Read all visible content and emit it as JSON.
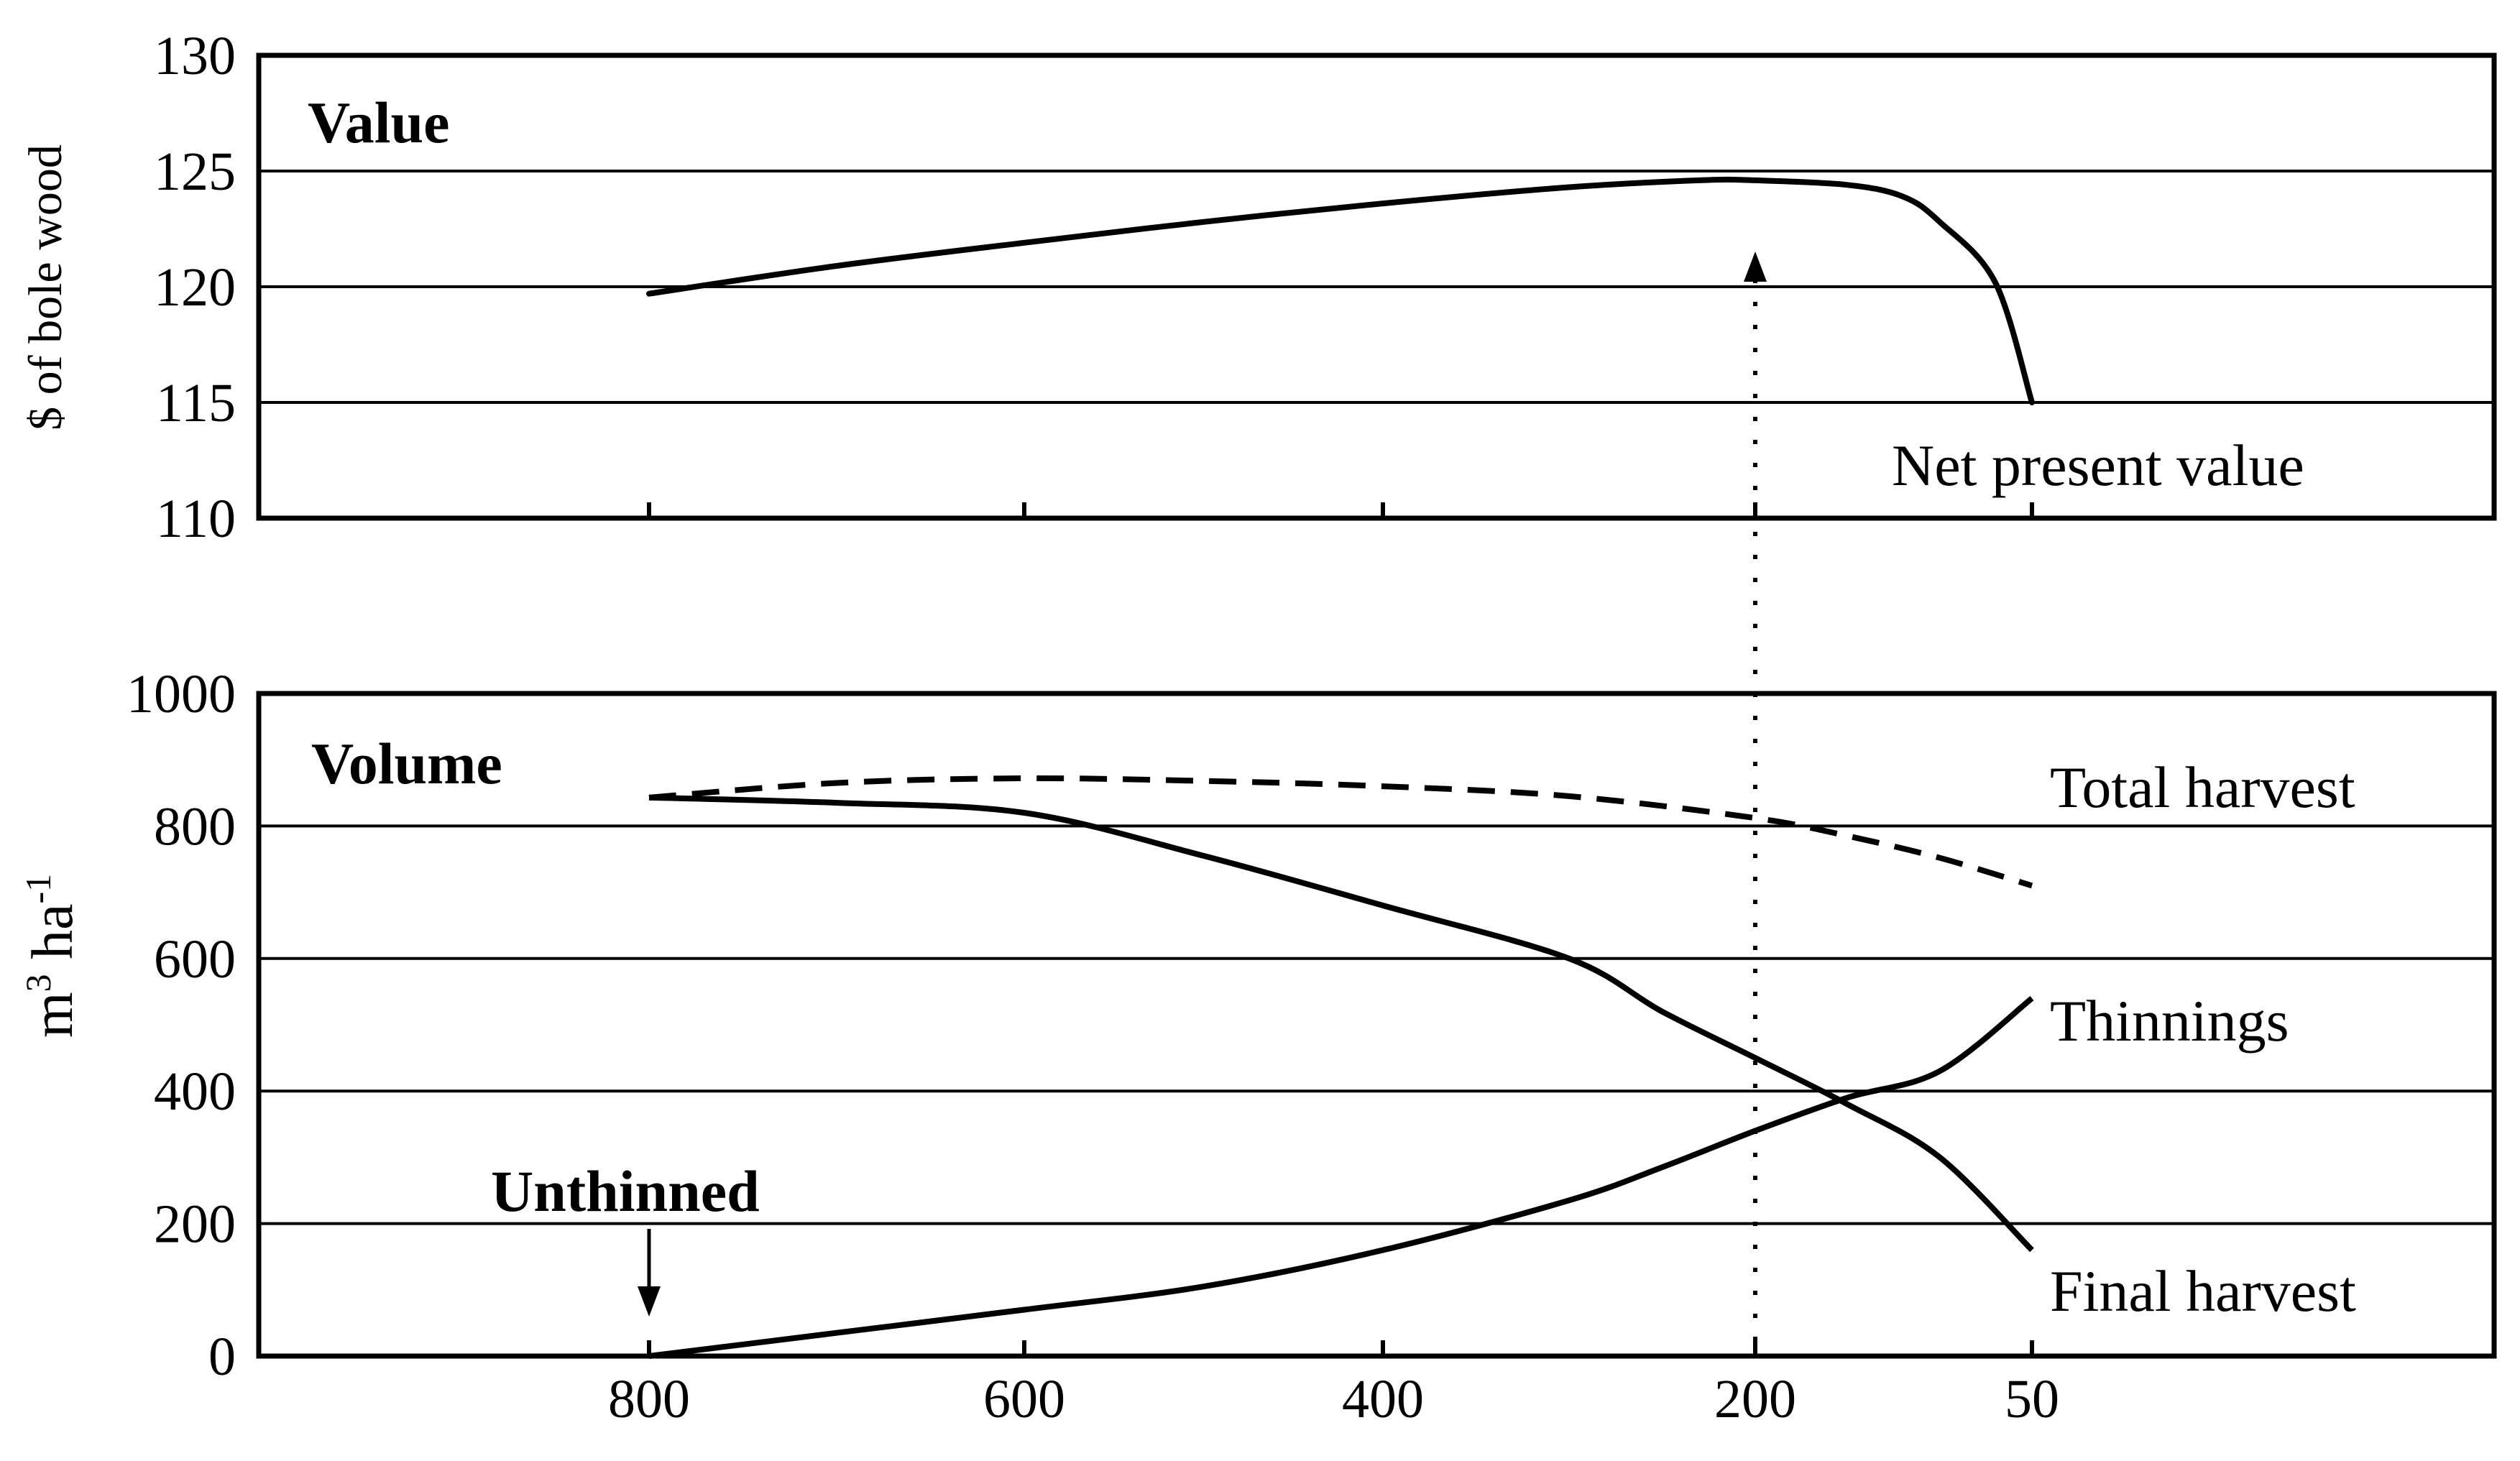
{
  "chart_data": [
    {
      "panel": "top",
      "type": "line",
      "title": "Value",
      "ylabel": "$ of bole wood",
      "ylim": [
        110,
        130
      ],
      "yticks": [
        "130",
        "125",
        "120",
        "115",
        "110"
      ],
      "grid": true,
      "series": [
        {
          "name": "Net present value",
          "line_style": "solid",
          "x": [
            800,
            700,
            600,
            500,
            400,
            300,
            230,
            200,
            150,
            120,
            100,
            70,
            50
          ],
          "values": [
            119.7,
            120.9,
            121.9,
            122.8,
            123.6,
            124.3,
            124.6,
            124.6,
            124.4,
            123.9,
            122.8,
            120.2,
            115.0
          ]
        }
      ]
    },
    {
      "panel": "bottom",
      "type": "line",
      "title": "Volume",
      "xlabel": "",
      "ylabel": "m3 ha-1",
      "ylabel_base": "m",
      "ylabel_sup1": "3",
      "ylabel_mid": " ha",
      "ylabel_sup2": "-1",
      "ylim": [
        0,
        1000
      ],
      "yticks": [
        "1000",
        "800",
        "600",
        "400",
        "200",
        "0"
      ],
      "xtick_labels": [
        "800",
        "600",
        "400",
        "200",
        "50"
      ],
      "x_ticks": [
        800,
        600,
        400,
        200,
        50
      ],
      "grid": true,
      "annotation": "Unthinned",
      "annotation_x": 800,
      "optimum_x": 200,
      "series": [
        {
          "name": "Total harvest",
          "line_style": "dashed",
          "x": [
            800,
            700,
            600,
            500,
            400,
            300,
            200,
            150,
            100,
            50
          ],
          "values": [
            843,
            865,
            872,
            868,
            860,
            845,
            812,
            785,
            752,
            710
          ]
        },
        {
          "name": "Thinnings",
          "line_style": "solid",
          "x": [
            800,
            700,
            600,
            500,
            400,
            300,
            250,
            200,
            150,
            100,
            50
          ],
          "values": [
            0,
            35,
            70,
            105,
            160,
            235,
            285,
            340,
            390,
            430,
            540
          ]
        },
        {
          "name": "Final harvest",
          "line_style": "solid",
          "x": [
            800,
            700,
            600,
            500,
            400,
            300,
            250,
            200,
            150,
            100,
            50
          ],
          "values": [
            843,
            835,
            820,
            755,
            680,
            600,
            520,
            450,
            380,
            300,
            160
          ]
        }
      ]
    }
  ]
}
